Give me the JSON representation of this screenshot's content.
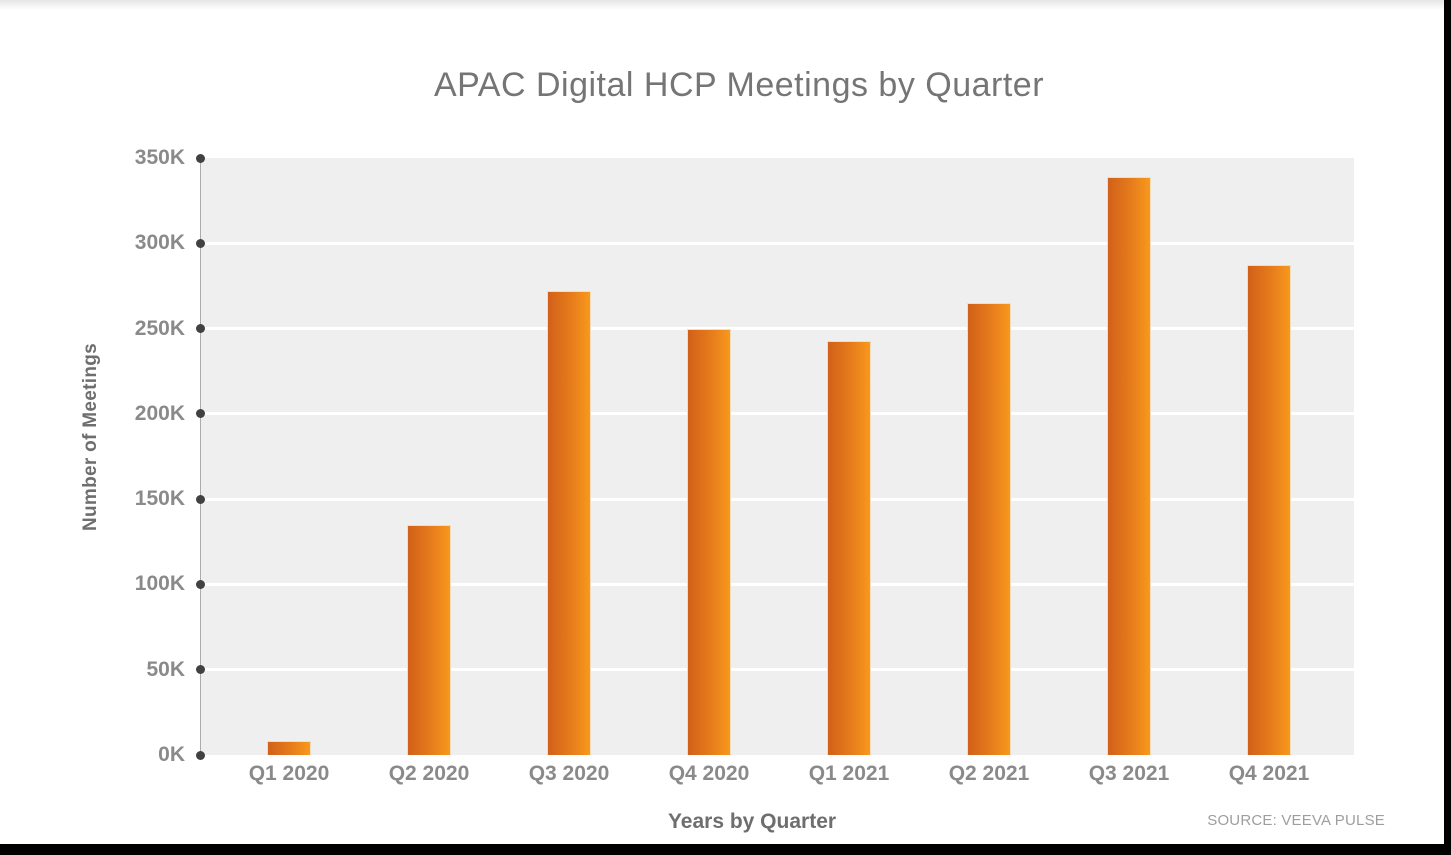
{
  "page": {
    "source_note": "SOURCE: VEEVA PULSE"
  },
  "chart_data": {
    "type": "bar",
    "title": "APAC Digital HCP Meetings by Quarter",
    "xlabel": "Years by Quarter",
    "ylabel": "Number of Meetings",
    "categories": [
      "Q1 2020",
      "Q2 2020",
      "Q3 2020",
      "Q4 2020",
      "Q1 2021",
      "Q2 2021",
      "Q3 2021",
      "Q4 2021"
    ],
    "values": [
      8000,
      135000,
      272000,
      250000,
      243000,
      265000,
      339000,
      287000
    ],
    "value_unit": "meetings",
    "ylim": [
      0,
      350000
    ],
    "y_tick_step": 50000,
    "y_tick_labels_bottom_to_top": [
      "0K",
      "50K",
      "100K",
      "150K",
      "200K",
      "250K",
      "300K",
      "350K"
    ],
    "grid": {
      "horizontal": true,
      "vertical": false
    },
    "legend": "none",
    "colors": {
      "bar_gradient_left": "#d2601a",
      "bar_gradient_right": "#f8981d",
      "bar_outline": "#f4ddbd",
      "plot_background": "#efefef",
      "gridline": "#ffffff",
      "axis_line": "#ababab",
      "tick_dot": "#414141",
      "title_text": "#757575",
      "tick_label_text": "#8a8a8a",
      "axis_title_text": "#6e6e6e",
      "source_text": "#9e9e9e"
    }
  }
}
